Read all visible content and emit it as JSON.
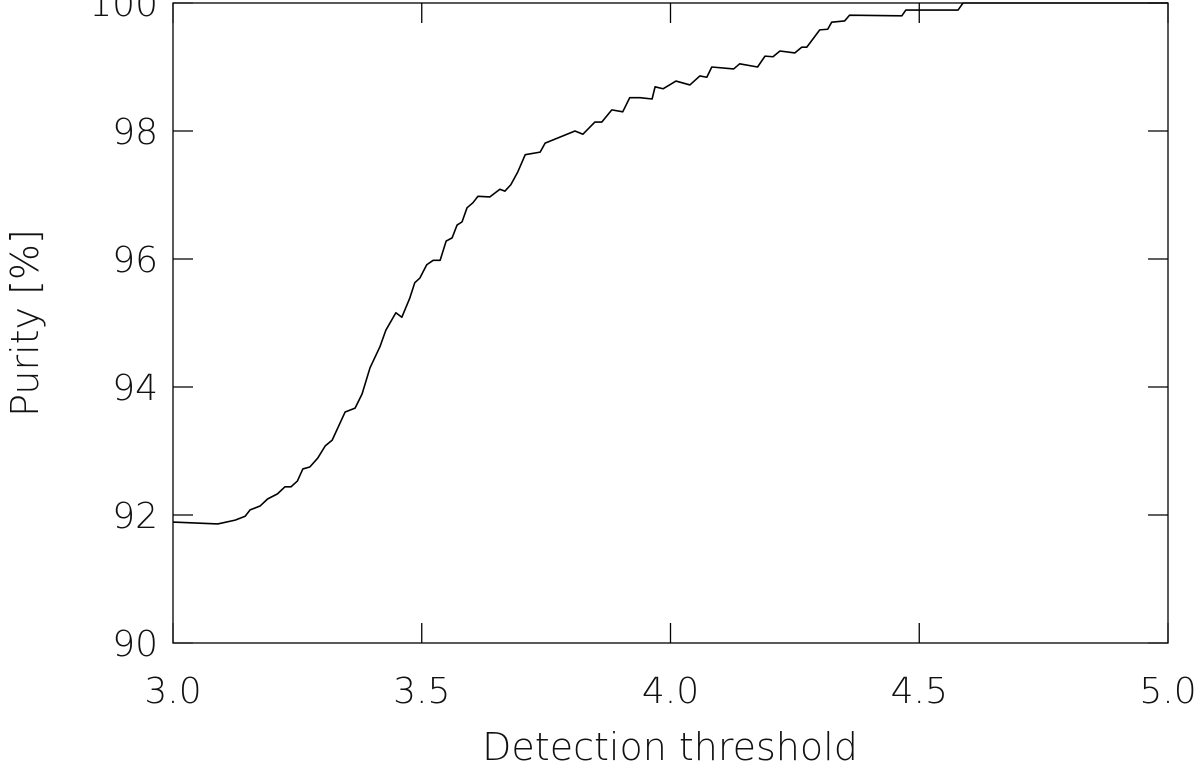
{
  "chart_data": {
    "type": "line",
    "x_label": "Detection threshold",
    "y_label": "Purity [%]",
    "x": [
      3.0,
      3.09,
      3.125,
      3.145,
      3.155,
      3.175,
      3.19,
      3.21,
      3.225,
      3.237,
      3.25,
      3.261,
      3.275,
      3.291,
      3.306,
      3.32,
      3.346,
      3.366,
      3.38,
      3.396,
      3.416,
      3.428,
      3.448,
      3.46,
      3.476,
      3.486,
      3.496,
      3.51,
      3.523,
      3.537,
      3.549,
      3.561,
      3.571,
      3.581,
      3.591,
      3.603,
      3.613,
      3.637,
      3.657,
      3.667,
      3.679,
      3.693,
      3.708,
      3.738,
      3.748,
      3.808,
      3.824,
      3.848,
      3.862,
      3.882,
      3.904,
      3.918,
      3.939,
      3.963,
      3.969,
      3.985,
      4.011,
      4.039,
      4.059,
      4.073,
      4.083,
      4.127,
      4.139,
      4.175,
      4.19,
      4.206,
      4.22,
      4.25,
      4.264,
      4.274,
      4.3,
      4.316,
      4.324,
      4.35,
      4.36,
      4.465,
      4.473,
      4.578,
      4.588,
      5.0
    ],
    "series": [
      {
        "color": "#000000",
        "values": [
          91.89,
          91.86,
          91.92,
          91.98,
          92.08,
          92.14,
          92.25,
          92.33,
          92.44,
          92.44,
          92.53,
          92.72,
          92.75,
          92.89,
          93.08,
          93.17,
          93.61,
          93.67,
          93.89,
          94.3,
          94.63,
          94.89,
          95.16,
          95.09,
          95.39,
          95.63,
          95.7,
          95.91,
          95.98,
          95.98,
          96.28,
          96.33,
          96.53,
          96.58,
          96.8,
          96.88,
          96.98,
          96.97,
          97.09,
          97.06,
          97.16,
          97.36,
          97.63,
          97.67,
          97.81,
          98.0,
          97.95,
          98.14,
          98.14,
          98.33,
          98.3,
          98.52,
          98.52,
          98.5,
          98.69,
          98.66,
          98.78,
          98.72,
          98.86,
          98.84,
          99.0,
          98.97,
          99.05,
          99.0,
          99.17,
          99.16,
          99.25,
          99.22,
          99.31,
          99.31,
          99.58,
          99.59,
          99.7,
          99.72,
          99.81,
          99.8,
          99.89,
          99.89,
          100.0,
          100.0
        ]
      }
    ],
    "xlim": [
      3,
      5
    ],
    "xticks": [
      {
        "value": 3,
        "label": "3.0"
      },
      3.5,
      {
        "value": 4,
        "label": "4.0"
      },
      4.5,
      {
        "value": 5,
        "label": "5.0"
      }
    ],
    "ylim": [
      90,
      100
    ],
    "yticks": [
      90,
      92,
      94,
      96,
      98,
      100
    ]
  }
}
